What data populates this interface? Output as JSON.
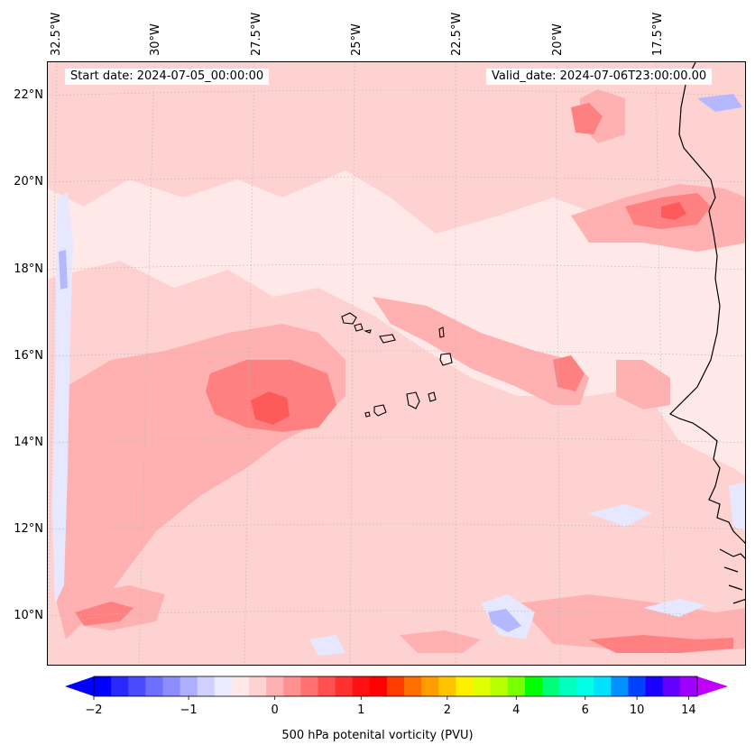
{
  "header": {
    "start_date": "Start date: 2024-07-05_00:00:00",
    "valid_date": "Valid_date: 2024-07-06T23:00:00.00"
  },
  "map": {
    "longitude_labels": [
      "32.5°W",
      "30°W",
      "27.5°W",
      "25°W",
      "22.5°W",
      "20°W",
      "17.5°W"
    ],
    "latitude_labels": [
      "22°N",
      "20°N",
      "18°N",
      "16°N",
      "14°N",
      "12°N",
      "10°N"
    ],
    "extent": {
      "lon_min": -32.6,
      "lon_max": -15.3,
      "lat_min": 8.9,
      "lat_max": 22.8
    },
    "colors": {
      "background": "#ffe8e8",
      "light_pink": "#ffd2d2",
      "pink": "#ffb0b0",
      "red": "#ff8080",
      "deep_red": "#ff5a5a",
      "light_blue": "#e6e8ff",
      "blue": "#b4b8ff",
      "coast": "#000000"
    }
  },
  "colorbar": {
    "label": "500 hPa potenital vorticity (PVU)",
    "tick_labels": [
      "−2",
      "−1",
      "0",
      "1",
      "2",
      "4",
      "6",
      "10",
      "14"
    ],
    "colors": [
      "#0000ff",
      "#2828ff",
      "#4a4aff",
      "#6e6eff",
      "#8c8cff",
      "#aeaeff",
      "#d0d0ff",
      "#ececff",
      "#ffe8e8",
      "#ffd2d2",
      "#ffb0b0",
      "#ff9090",
      "#ff7070",
      "#ff5050",
      "#ff3030",
      "#ff1010",
      "#ff0000",
      "#ff3c00",
      "#ff6e00",
      "#ff9c00",
      "#ffc400",
      "#fff000",
      "#e0ff00",
      "#b4ff00",
      "#78ff00",
      "#00ff00",
      "#00ff78",
      "#00ffc0",
      "#00ffe6",
      "#00e0ff",
      "#0090ff",
      "#0040ff",
      "#1c00ff",
      "#6400ff",
      "#a000ff"
    ],
    "extend_min_color": "#0000ff",
    "extend_max_color": "#c000ff"
  }
}
